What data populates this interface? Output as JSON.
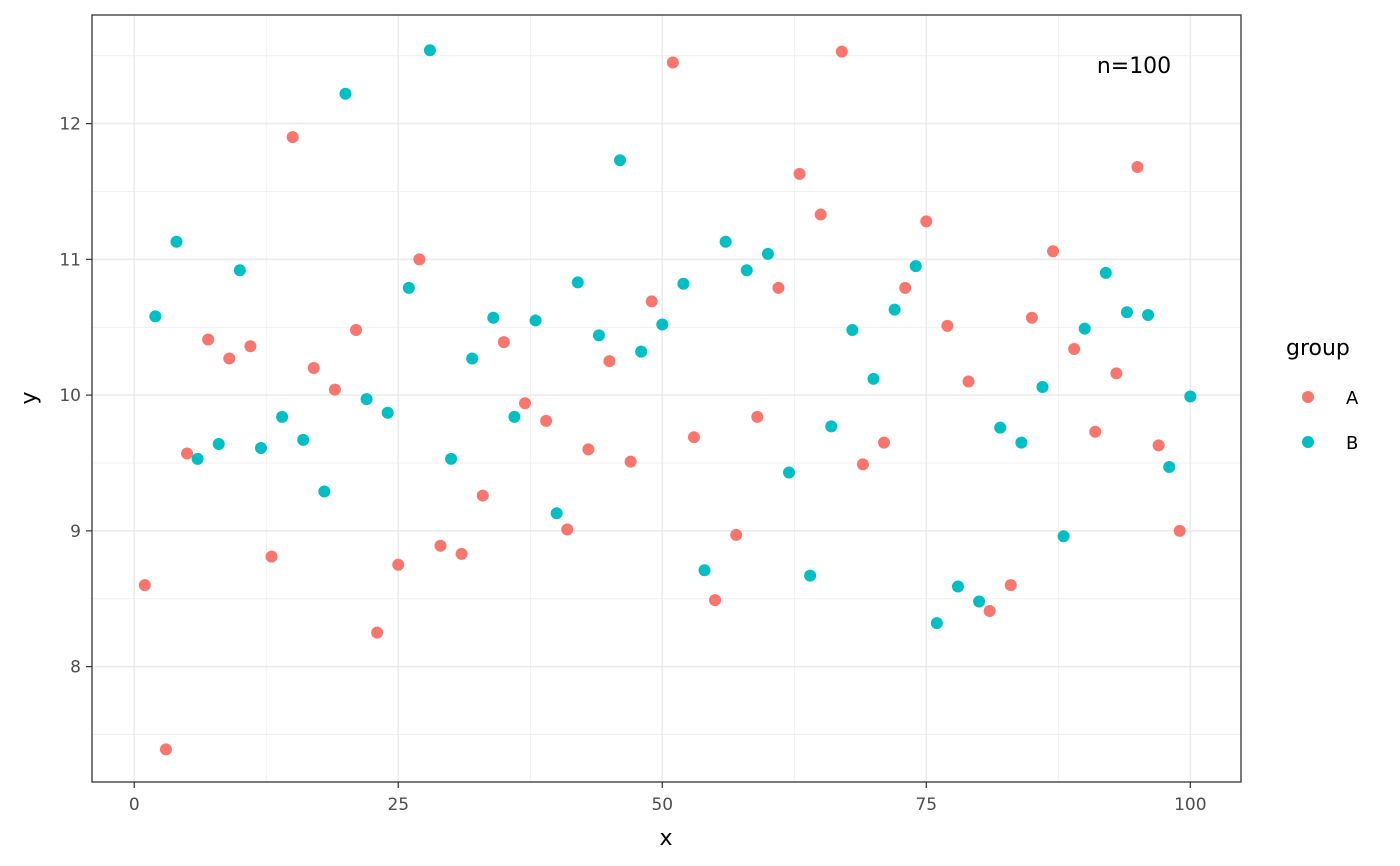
{
  "chart_data": {
    "type": "scatter",
    "title": "",
    "xlabel": "x",
    "ylabel": "y",
    "xlim": [
      -4,
      104.8
    ],
    "ylim": [
      7.15,
      12.8
    ],
    "xticks": [
      0,
      25,
      50,
      75,
      100
    ],
    "yticks": [
      8,
      9,
      10,
      11,
      12
    ],
    "grid": true,
    "annotation": "n=100",
    "legend": {
      "title": "group",
      "position": "right"
    },
    "series": [
      {
        "name": "A",
        "color": "#F8766D",
        "x": [
          1,
          3,
          5,
          7,
          9,
          11,
          13,
          15,
          17,
          19,
          21,
          23,
          25,
          27,
          29,
          31,
          33,
          35,
          37,
          39,
          41,
          43,
          45,
          47,
          49,
          51,
          53,
          55,
          57,
          59,
          61,
          63,
          65,
          67,
          69,
          71,
          73,
          75,
          77,
          79,
          81,
          83,
          85,
          87,
          89,
          91,
          93,
          95,
          97,
          99
        ],
        "y": [
          8.6,
          7.39,
          9.57,
          10.41,
          10.27,
          10.36,
          8.81,
          11.9,
          10.2,
          10.04,
          10.48,
          8.25,
          8.75,
          11.0,
          8.89,
          8.83,
          9.26,
          10.39,
          9.94,
          9.81,
          9.01,
          9.6,
          10.25,
          9.51,
          10.69,
          12.45,
          9.69,
          8.49,
          8.97,
          9.84,
          10.79,
          11.63,
          11.33,
          12.53,
          9.49,
          9.65,
          10.79,
          11.28,
          10.51,
          10.1,
          8.41,
          8.6,
          10.57,
          11.06,
          10.34,
          9.73,
          10.16,
          11.68,
          9.63,
          9.0
        ]
      },
      {
        "name": "B",
        "color": "#00BFC4",
        "x": [
          2,
          4,
          6,
          8,
          10,
          12,
          14,
          16,
          18,
          20,
          22,
          24,
          26,
          28,
          30,
          32,
          34,
          36,
          38,
          40,
          42,
          44,
          46,
          48,
          50,
          52,
          54,
          56,
          58,
          60,
          62,
          64,
          66,
          68,
          70,
          72,
          74,
          76,
          78,
          80,
          82,
          84,
          86,
          88,
          90,
          92,
          94,
          96,
          98,
          100
        ],
        "y": [
          10.58,
          11.13,
          9.53,
          9.64,
          10.92,
          9.61,
          9.84,
          9.67,
          9.29,
          12.22,
          9.97,
          9.87,
          10.79,
          12.54,
          9.53,
          10.27,
          10.57,
          9.84,
          10.55,
          9.13,
          10.83,
          10.44,
          11.73,
          10.32,
          10.52,
          10.82,
          8.71,
          11.13,
          10.92,
          11.04,
          9.43,
          8.67,
          9.77,
          10.48,
          10.12,
          10.63,
          10.95,
          8.32,
          8.59,
          8.48,
          9.76,
          9.65,
          10.06,
          8.96,
          10.49,
          10.9,
          10.61,
          10.59,
          9.47,
          9.99
        ]
      }
    ]
  }
}
